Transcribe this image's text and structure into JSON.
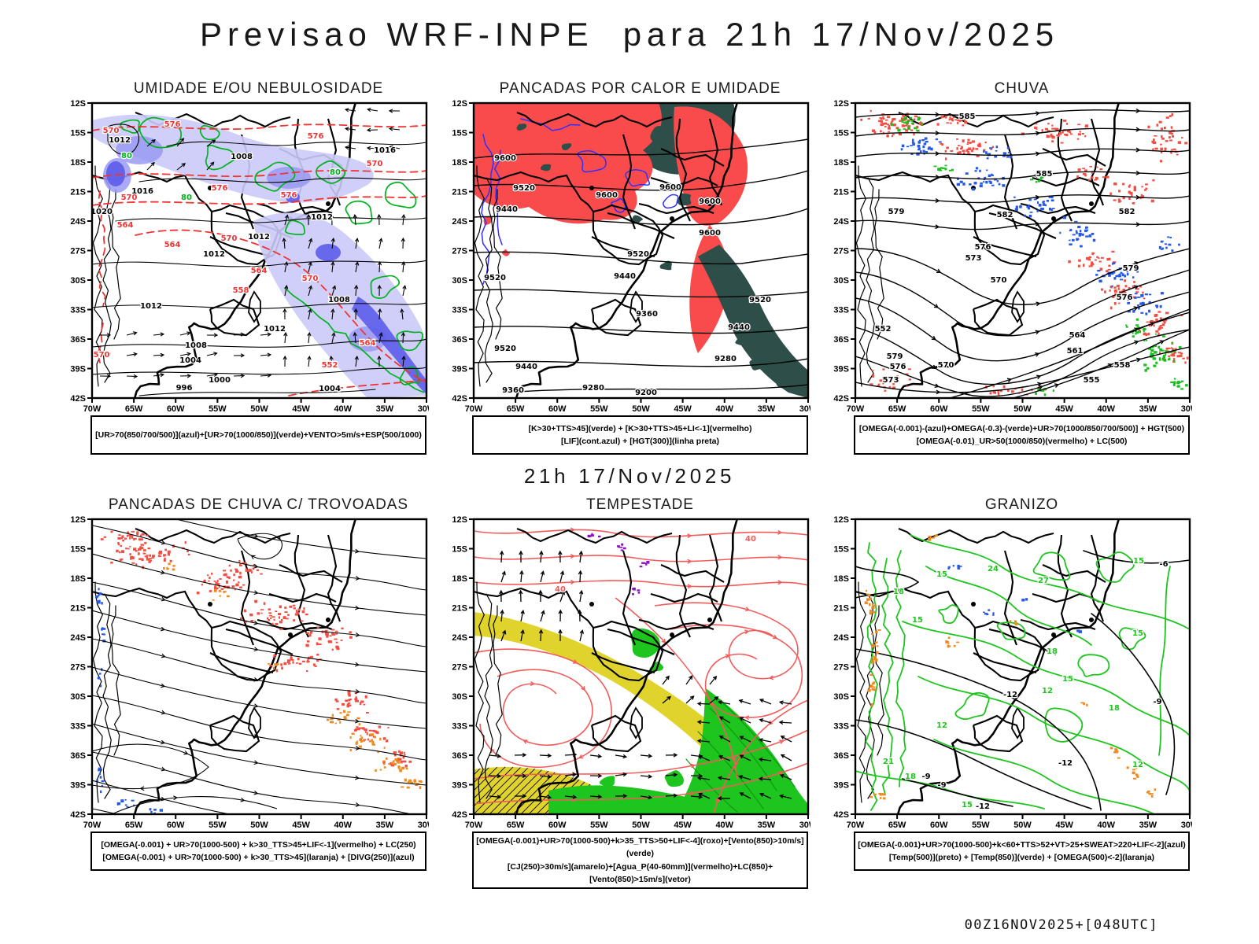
{
  "page": {
    "title": "Previsao WRF-INPE  para 21h 17/Nov/2025",
    "mid_label": "21h 17/Nov/2025",
    "run_stamp": "00Z16NOV2025+[048UTC]"
  },
  "axes": {
    "lat_labels": [
      "12S",
      "15S",
      "18S",
      "21S",
      "24S",
      "27S",
      "30S",
      "33S",
      "36S",
      "39S",
      "42S"
    ],
    "lon_labels": [
      "70W",
      "65W",
      "60W",
      "55W",
      "50W",
      "45W",
      "40W",
      "35W",
      "30W"
    ]
  },
  "colors": {
    "map_line": "#000000",
    "red_fill": "#f94b4b",
    "teal_fill": "#2e4f49",
    "blue_contour": "#2f2fff",
    "green_contour": "#00b31e",
    "red_contour": "#f03434",
    "violet_light": "#cacaf8",
    "violet_mid": "#9a9af3",
    "violet_dark": "#5c5cea",
    "speckle_red": "#f44d42",
    "speckle_blue": "#2458e8",
    "speckle_green": "#17c11c",
    "speckle_orange": "#f08a1e",
    "yellow_fill": "#e0d42c",
    "green_fill": "#1ec51e",
    "green_fill_dark": "#0f9a10",
    "purple": "#8d10c4",
    "red_stream": "#f35b5b"
  },
  "panels": [
    {
      "id": "umidade",
      "title": "UMIDADE E/OU NEBULOSIDADE",
      "caption_lines": [
        "[UR>70(850/700/500)](azul)+[UR>70(1000/850)](verde)+VENTO>5m/s+ESP(500/1000)"
      ],
      "contour_labels": {
        "pressure": [
          "1012",
          "1008",
          "1016",
          "1020",
          "1004",
          "1000",
          "996"
        ],
        "thickness": [
          "576",
          "570",
          "564",
          "558",
          "552"
        ],
        "humidity": [
          "80"
        ]
      }
    },
    {
      "id": "pancadas-calor",
      "title": "PANCADAS POR CALOR E UMIDADE",
      "caption_lines": [
        "[K>30+TTS>45](verde) + [K>30+TTS>45+LI<-1](vermelho)",
        "[LIF](cont.azul) + [HGT(300)](linha preta)"
      ],
      "contour_labels": {
        "height_300": [
          "9600",
          "9520",
          "9440",
          "9360",
          "9280",
          "9200"
        ]
      }
    },
    {
      "id": "chuva",
      "title": "CHUVA",
      "caption_lines": [
        "[OMEGA(-0.001)-(azul)+OMEGA(-0.3)-(verde)+UR>70(1000/850/700/500)] + HGT(500)",
        "[OMEGA(-0.01)_UR>50(1000/850)(vermelho) + LC(500)"
      ],
      "contour_labels": {
        "height_500": [
          "585",
          "582",
          "579",
          "576",
          "573",
          "570",
          "564",
          "561",
          "558",
          "555",
          "552"
        ]
      }
    },
    {
      "id": "trovoadas",
      "title": "PANCADAS DE CHUVA C/ TROVOADAS",
      "caption_lines": [
        "[OMEGA(-0.001) + UR>70(1000-500) + k>30_TTS>45+LIF<-1](vermelho) + LC(250)",
        "[OMEGA(-0.001) + UR>70(1000-500) + k>30_TTS>45](laranja) + [DIVG(250)](azul)"
      ],
      "contour_labels": {}
    },
    {
      "id": "tempestade",
      "title": "TEMPESTADE",
      "caption_lines": [
        "[OMEGA(-0.001)+UR>70(1000-500)+k>35_TTS>50+LIF<-4](roxo)+[Vento(850)>10m/s](verde)",
        "[CJ(250)>30m/s](amarelo)+[Agua_P(40-60mm)](vermelho)+LC(850)+[Vento(850)>15m/s](vetor)"
      ],
      "contour_labels": {
        "precip_water": [
          "40"
        ]
      }
    },
    {
      "id": "granizo",
      "title": "GRANIZO",
      "caption_lines": [
        "[OMEGA(-0.001)+UR>70(1000-500)+k<60+TTS>52+VT>25+SWEAT>220+LIF<-2](azul)",
        "[Temp(500)](preto) + [Temp(850)](verde) + [OMEGA(500)<-2](laranja)"
      ],
      "contour_labels": {
        "temp_850": [
          "12",
          "15",
          "18",
          "21",
          "24",
          "27"
        ],
        "temp_500": [
          "-6",
          "-9",
          "-12"
        ]
      }
    }
  ]
}
